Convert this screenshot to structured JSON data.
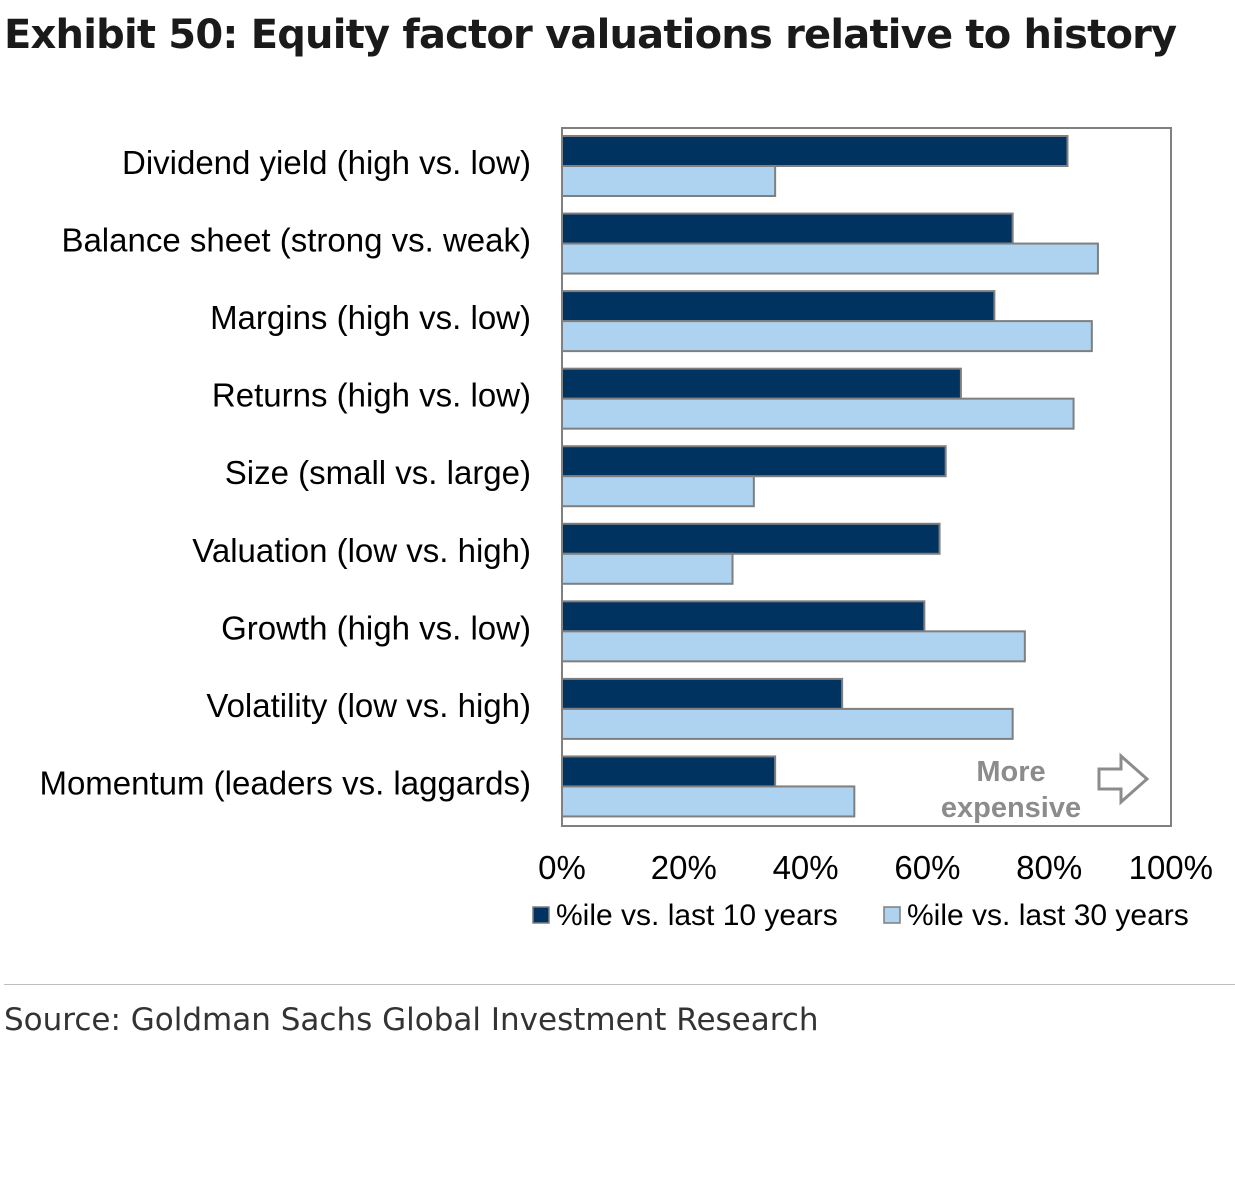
{
  "exhibit": {
    "title": "Exhibit 50: Equity factor valuations relative to history",
    "source": "Source: Goldman Sachs Global Investment Research"
  },
  "chart_data": {
    "type": "bar",
    "orientation": "horizontal",
    "title": "Exhibit 50: Equity factor valuations relative to history",
    "xlabel": "",
    "ylabel": "",
    "categories": [
      "Dividend yield (high vs. low)",
      "Balance sheet (strong vs. weak)",
      "Margins (high vs. low)",
      "Returns (high vs. low)",
      "Size (small vs. large)",
      "Valuation (low vs. high)",
      "Growth (high vs. low)",
      "Volatility (low vs. high)",
      "Momentum (leaders vs. laggards)"
    ],
    "series": [
      {
        "name": "%ile vs. last 10 years",
        "color": "#003360",
        "values": [
          83,
          74,
          71,
          65.5,
          63,
          62,
          59.5,
          46,
          35
        ]
      },
      {
        "name": "%ile vs. last 30 years",
        "color": "#add3f0",
        "values": [
          35,
          88,
          87,
          84,
          31.5,
          28,
          76,
          74,
          48
        ]
      }
    ],
    "xlim": [
      0,
      100
    ],
    "x_ticks": [
      "0%",
      "20%",
      "40%",
      "60%",
      "80%",
      "100%"
    ],
    "x_tick_values": [
      0,
      20,
      40,
      60,
      80,
      100
    ],
    "grid": false,
    "legend_position": "bottom",
    "annotation": {
      "lines": [
        "More",
        "expensive"
      ],
      "icon": "right-arrow-outline-icon",
      "color": "#8c8c8c"
    }
  }
}
